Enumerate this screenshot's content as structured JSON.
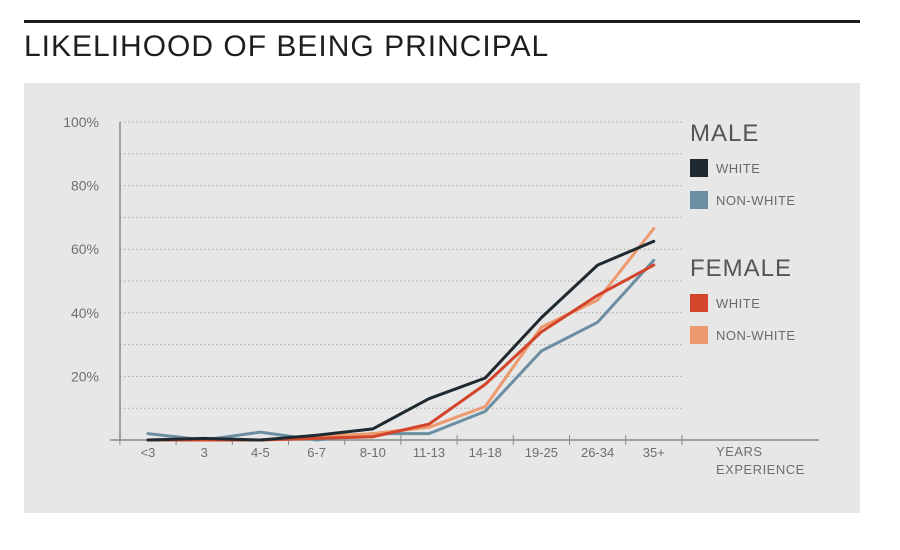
{
  "title": "LIKELIHOOD OF BEING PRINCIPAL",
  "chart_data": {
    "type": "line",
    "title": "LIKELIHOOD OF BEING PRINCIPAL",
    "xlabel": "YEARS EXPERIENCE",
    "xlabel_lines": [
      "YEARS",
      "EXPERIENCE"
    ],
    "ylabel": "",
    "categories": [
      "<3",
      "3",
      "4-5",
      "6-7",
      "8-10",
      "11-13",
      "14-18",
      "19-25",
      "26-34",
      "35+"
    ],
    "y_ticks": [
      20,
      40,
      60,
      80,
      100
    ],
    "y_tick_labels": [
      "20%",
      "40%",
      "60%",
      "80%",
      "100%"
    ],
    "ylim": [
      0,
      100
    ],
    "grid": "horizontal dotted, every 10%",
    "legend_position": "right",
    "legend_groups": [
      {
        "title": "MALE",
        "entries": [
          0,
          1
        ]
      },
      {
        "title": "FEMALE",
        "entries": [
          2,
          3
        ]
      }
    ],
    "series": [
      {
        "name": "WHITE",
        "group": "MALE",
        "color": "#1f2a30",
        "values": [
          0,
          0.5,
          0,
          1.5,
          3.5,
          13,
          19.5,
          38.5,
          55,
          62.5
        ]
      },
      {
        "name": "NON-WHITE",
        "group": "MALE",
        "color": "#6b8ea3",
        "values": [
          2,
          0,
          2.5,
          0,
          2,
          2,
          9,
          28,
          37,
          56.5
        ]
      },
      {
        "name": "WHITE",
        "group": "FEMALE",
        "color": "#d2452a",
        "values": [
          0,
          0,
          0,
          0.5,
          1,
          5,
          17.5,
          34,
          45.5,
          55
        ]
      },
      {
        "name": "NON-WHITE",
        "group": "FEMALE",
        "color": "#ee9a6f",
        "values": [
          0,
          0,
          0,
          1,
          2,
          4,
          10.5,
          35.5,
          44,
          66.5
        ]
      }
    ]
  }
}
